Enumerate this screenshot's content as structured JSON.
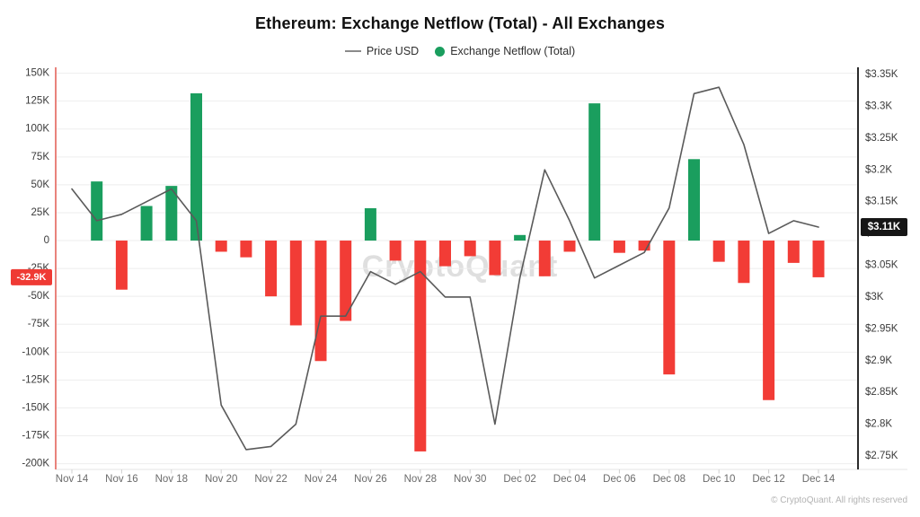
{
  "title": "Ethereum: Exchange Netflow (Total) - All Exchanges",
  "legend": {
    "price_label": "Price USD",
    "netflow_label": "Exchange Netflow (Total)"
  },
  "watermark": "CryptoQuant",
  "footer": "© CryptoQuant. All rights reserved",
  "colors": {
    "netflow_positive": "#1a9e5e",
    "netflow_negative": "#f23c36",
    "price_line": "#5a5a5a",
    "left_axis_line": "#e9837c",
    "right_axis_line": "#2b2b2b",
    "grid": "#eeeeee",
    "x_axis_line": "#e6e6e6",
    "x_tick": "#cfcfcf",
    "left_label_color": "#3a3a3a",
    "right_label_color": "#3a3a3a",
    "x_label_color": "#6b6b6b",
    "badge_netflow_bg": "#ef3a34",
    "badge_price_bg": "#161616",
    "badge_text": "#ffffff"
  },
  "badges": {
    "netflow_current": {
      "text": "-32.9K",
      "value": -32.9
    },
    "price_current": {
      "text": "$3.11K",
      "value": 3.11
    }
  },
  "chart_data": {
    "type": "bar+line",
    "title": "Ethereum: Exchange Netflow (Total) - All Exchanges",
    "legend_position": "top",
    "grid": "horizontal",
    "dates": [
      "Nov 14",
      "Nov 15",
      "Nov 16",
      "Nov 17",
      "Nov 18",
      "Nov 19",
      "Nov 20",
      "Nov 21",
      "Nov 22",
      "Nov 23",
      "Nov 24",
      "Nov 25",
      "Nov 26",
      "Nov 27",
      "Nov 28",
      "Nov 29",
      "Nov 30",
      "Dec 01",
      "Dec 02",
      "Dec 03",
      "Dec 04",
      "Dec 05",
      "Dec 06",
      "Dec 07",
      "Dec 08",
      "Dec 09",
      "Dec 10",
      "Dec 11",
      "Dec 12",
      "Dec 13",
      "Dec 14"
    ],
    "x_tick_labels": [
      "Nov 14",
      "Nov 16",
      "Nov 18",
      "Nov 20",
      "Nov 22",
      "Nov 24",
      "Nov 26",
      "Nov 28",
      "Nov 30",
      "Dec 02",
      "Dec 04",
      "Dec 06",
      "Dec 08",
      "Dec 10",
      "Dec 12",
      "Dec 14"
    ],
    "series": [
      {
        "name": "Exchange Netflow (Total)",
        "type": "bar",
        "axis": "left",
        "unit": "K ETH",
        "values": [
          0,
          53,
          -44,
          31,
          49,
          132,
          -10,
          -15,
          -50,
          -76,
          -108,
          -72,
          29,
          -18,
          -189,
          -23,
          -14,
          -31,
          5,
          -32,
          -10,
          123,
          -11,
          -9,
          -120,
          73,
          -19,
          -38,
          -143,
          -20,
          -32.9
        ]
      },
      {
        "name": "Price USD",
        "type": "line",
        "axis": "right",
        "unit": "$K",
        "values": [
          3.17,
          3.12,
          3.13,
          3.15,
          3.17,
          3.12,
          2.83,
          2.76,
          2.765,
          2.8,
          2.97,
          2.97,
          3.04,
          3.02,
          3.04,
          3.0,
          3.0,
          2.8,
          3.03,
          3.2,
          3.12,
          3.03,
          3.05,
          3.07,
          3.14,
          3.32,
          3.33,
          3.24,
          3.1,
          3.12,
          3.11
        ]
      }
    ],
    "left_axis": {
      "min": -200,
      "max": 150,
      "step": 25,
      "tick_labels": [
        "150K",
        "125K",
        "100K",
        "75K",
        "50K",
        "25K",
        "0",
        "-25K",
        "-50K",
        "-75K",
        "-100K",
        "-125K",
        "-150K",
        "-175K",
        "-200K"
      ]
    },
    "right_axis": {
      "min": 2.75,
      "max": 3.35,
      "step": 0.05,
      "tick_labels": [
        "$3.35K",
        "$3.3K",
        "$3.25K",
        "$3.2K",
        "$3.15K",
        "$3.1K",
        "$3.05K",
        "$3K",
        "$2.95K",
        "$2.9K",
        "$2.85K",
        "$2.8K",
        "$2.75K"
      ]
    }
  }
}
